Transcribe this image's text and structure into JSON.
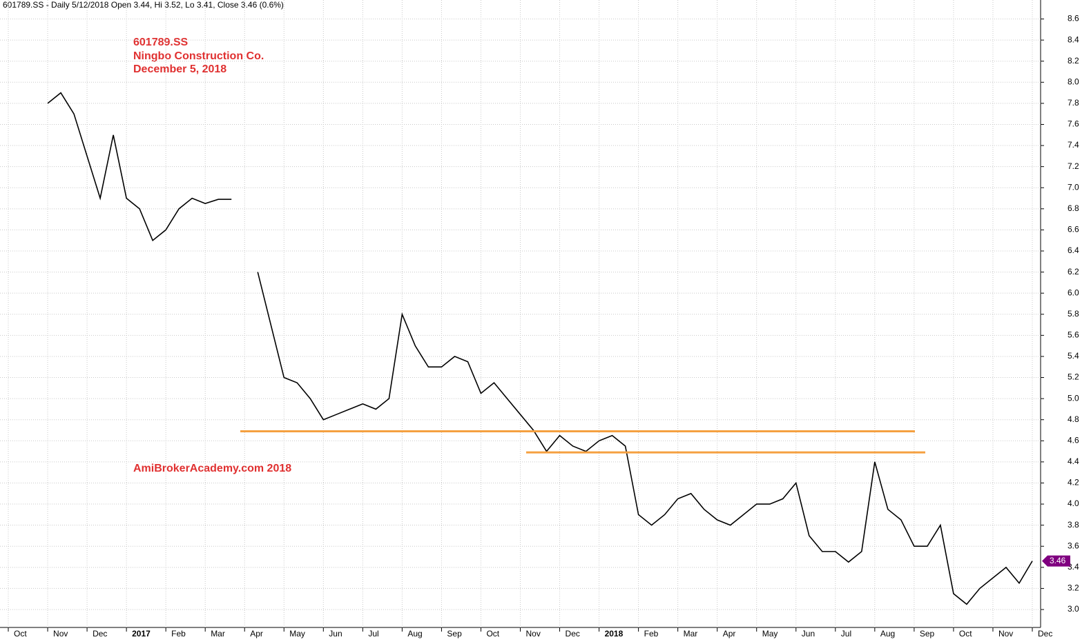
{
  "chart_data": {
    "type": "line",
    "header": "601789.SS - Daily 5/12/2018 Open 3.44, Hi 3.52, Lo 3.41, Close 3.46 (0.6%)",
    "annotations": [
      "601789.SS",
      "Ningbo Construction Co.",
      "December 5, 2018",
      "AmiBrokerAcademy.com 2018"
    ],
    "categories": [
      "Oct",
      null,
      null,
      "Nov",
      null,
      null,
      "Dec",
      null,
      null,
      "2017",
      null,
      null,
      "Feb",
      null,
      null,
      "Mar",
      null,
      null,
      "Apr",
      null,
      null,
      "May",
      null,
      null,
      "Jun",
      null,
      null,
      "Jul",
      null,
      null,
      "Aug",
      null,
      null,
      "Sep",
      null,
      null,
      "Oct",
      null,
      null,
      "Nov",
      null,
      null,
      "Dec",
      null,
      null,
      "2018",
      null,
      null,
      "Feb",
      null,
      null,
      "Mar",
      null,
      null,
      "Apr",
      null,
      null,
      "May",
      null,
      null,
      "Jun",
      null,
      null,
      "Jul",
      null,
      null,
      "Aug",
      null,
      null,
      "Sep",
      null,
      null,
      "Oct",
      null,
      null,
      "Nov",
      null,
      null,
      "Dec"
    ],
    "series": [
      {
        "name": "601789.SS",
        "color": "#000000",
        "values": [
          null,
          null,
          null,
          7.8,
          7.9,
          7.7,
          7.3,
          6.9,
          7.5,
          6.9,
          6.8,
          6.5,
          6.6,
          6.8,
          6.9,
          6.85,
          6.89,
          6.89,
          null,
          6.2,
          5.7,
          5.2,
          5.15,
          5.0,
          4.8,
          4.85,
          4.9,
          4.95,
          4.9,
          5.0,
          5.8,
          5.5,
          5.3,
          5.3,
          5.4,
          5.35,
          5.05,
          5.15,
          5.0,
          4.85,
          4.7,
          4.5,
          4.65,
          4.55,
          4.5,
          4.6,
          4.65,
          4.55,
          3.9,
          3.8,
          3.9,
          4.05,
          4.1,
          3.95,
          3.85,
          3.8,
          3.9,
          4.0,
          4.0,
          4.05,
          4.2,
          3.7,
          3.55,
          3.55,
          3.45,
          3.55,
          4.4,
          3.95,
          3.85,
          3.6,
          3.6,
          3.8,
          3.15,
          3.05,
          3.2,
          3.3,
          3.4,
          3.25,
          3.46
        ]
      }
    ],
    "last_price": 3.46,
    "last_price_color": "#800080",
    "levels": [
      {
        "value": 4.69,
        "color": "#f5a040"
      },
      {
        "value": 4.49,
        "color": "#f5a040"
      }
    ],
    "ylim": [
      2.83,
      8.78
    ],
    "yticks": [
      {
        "value": 3,
        "label": "3.0"
      },
      3.2,
      3.4,
      3.6,
      3.8,
      {
        "value": 4,
        "label": "4.0"
      },
      4.2,
      4.4,
      4.6,
      4.8,
      {
        "value": 5,
        "label": "5.0"
      },
      5.2,
      5.4,
      5.6,
      5.8,
      {
        "value": 6,
        "label": "6.0"
      },
      6.2,
      6.4,
      6.6,
      6.8,
      {
        "value": 7,
        "label": "7.0"
      },
      7.2,
      7.4,
      7.6,
      7.8,
      {
        "value": 8,
        "label": "8.0"
      },
      8.2,
      8.4,
      8.6
    ],
    "grid": true
  }
}
